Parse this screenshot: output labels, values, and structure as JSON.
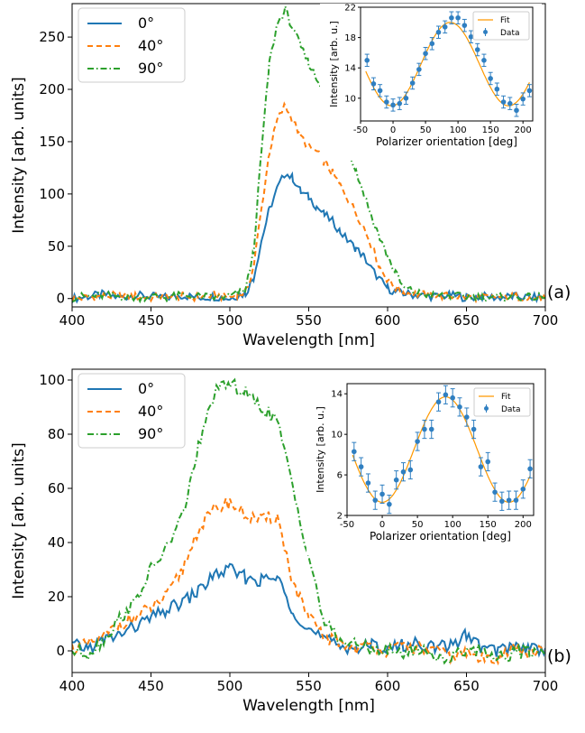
{
  "chart_data": [
    {
      "type": "line",
      "panel_label": "(a)",
      "xlabel": "Wavelength [nm]",
      "ylabel": "Intensity [arb. units]",
      "xlim": [
        400,
        700
      ],
      "ylim": [
        -8,
        282
      ],
      "x_ticks": [
        400,
        450,
        500,
        550,
        600,
        650,
        700
      ],
      "y_ticks": [
        0,
        50,
        100,
        150,
        200,
        250
      ],
      "legend_position": "upper-left",
      "grid": false,
      "x": [
        400,
        410,
        420,
        430,
        440,
        450,
        460,
        470,
        480,
        490,
        500,
        505,
        510,
        515,
        520,
        525,
        530,
        535,
        540,
        545,
        550,
        555,
        560,
        565,
        570,
        575,
        580,
        585,
        590,
        595,
        600,
        605,
        610,
        620,
        630,
        640,
        650,
        660,
        670,
        680,
        690,
        700
      ],
      "series": [
        {
          "name": "0°",
          "color": "#1f77b4",
          "dash": "solid",
          "values": [
            0,
            2,
            4,
            1,
            3,
            2,
            1,
            3,
            1,
            2,
            0,
            3,
            5,
            20,
            55,
            85,
            105,
            120,
            115,
            102,
            97,
            88,
            80,
            74,
            64,
            55,
            48,
            40,
            28,
            18,
            10,
            6,
            5,
            3,
            2,
            3,
            1,
            2,
            1,
            2,
            1,
            1
          ]
        },
        {
          "name": "40°",
          "color": "#ff7f0e",
          "dash": "dashed",
          "values": [
            0,
            1,
            2,
            3,
            2,
            1,
            2,
            2,
            1,
            3,
            1,
            4,
            6,
            30,
            85,
            140,
            170,
            185,
            170,
            155,
            145,
            140,
            130,
            120,
            108,
            95,
            82,
            68,
            50,
            30,
            18,
            10,
            6,
            4,
            3,
            2,
            2,
            1,
            1,
            2,
            1,
            0
          ]
        },
        {
          "name": "90°",
          "color": "#2ca02c",
          "dash": "dashdot",
          "values": [
            1,
            2,
            3,
            2,
            1,
            2,
            1,
            3,
            2,
            1,
            2,
            5,
            8,
            45,
            140,
            225,
            262,
            276,
            258,
            240,
            225,
            210,
            198,
            188,
            165,
            145,
            122,
            100,
            78,
            58,
            40,
            25,
            10,
            5,
            3,
            2,
            2,
            1,
            1,
            2,
            1,
            1
          ]
        }
      ],
      "inset": {
        "xlabel": "Polarizer orientation [deg]",
        "ylabel": "Intensity [arb. u.]",
        "xlim": [
          -50,
          215
        ],
        "ylim": [
          7,
          22
        ],
        "x_ticks": [
          -50,
          0,
          50,
          100,
          150,
          200
        ],
        "y_ticks": [
          10,
          14,
          18,
          22
        ],
        "fit_label": "Fit",
        "data_label": "Data",
        "fit_color": "#ff9900",
        "data_color": "#2f7fc1",
        "fit": {
          "mean": 14.5,
          "amplitude": 5.5,
          "peak_deg": 88
        },
        "data": {
          "x": [
            -40,
            -30,
            -20,
            -10,
            0,
            10,
            20,
            30,
            40,
            50,
            60,
            70,
            80,
            90,
            100,
            110,
            120,
            130,
            140,
            150,
            160,
            170,
            180,
            190,
            200,
            210
          ],
          "y": [
            15.0,
            11.9,
            11.0,
            9.5,
            9.1,
            9.3,
            10.0,
            12.0,
            13.8,
            15.9,
            17.2,
            18.7,
            19.4,
            20.6,
            20.6,
            19.6,
            18.1,
            16.4,
            15.0,
            12.6,
            11.2,
            9.5,
            9.3,
            8.4,
            9.9,
            11.0
          ],
          "err": [
            0.8,
            0.8,
            0.8,
            0.8,
            0.8,
            0.8,
            0.8,
            0.8,
            0.8,
            0.8,
            0.8,
            0.8,
            0.8,
            0.8,
            0.8,
            0.8,
            0.8,
            0.8,
            0.8,
            0.8,
            0.8,
            0.8,
            0.8,
            0.8,
            0.8,
            0.8
          ]
        }
      }
    },
    {
      "type": "line",
      "panel_label": "(b)",
      "xlabel": "Wavelength [nm]",
      "ylabel": "Intensity [arb. units]",
      "xlim": [
        400,
        700
      ],
      "ylim": [
        -8,
        104
      ],
      "x_ticks": [
        400,
        450,
        500,
        550,
        600,
        650,
        700
      ],
      "y_ticks": [
        0,
        20,
        40,
        60,
        80,
        100
      ],
      "legend_position": "upper-left",
      "grid": false,
      "x": [
        400,
        410,
        420,
        430,
        440,
        450,
        460,
        470,
        480,
        490,
        500,
        510,
        520,
        530,
        540,
        550,
        560,
        570,
        580,
        590,
        600,
        610,
        620,
        630,
        640,
        650,
        660,
        670,
        680,
        690,
        700
      ],
      "series": [
        {
          "name": "0°",
          "color": "#1f77b4",
          "dash": "solid",
          "values": [
            2,
            1,
            4,
            6,
            9,
            12,
            15,
            18,
            22,
            28,
            30,
            27,
            26,
            27,
            15,
            8,
            4,
            2,
            1,
            2,
            1,
            2,
            3,
            1,
            2,
            6,
            1,
            0,
            2,
            1,
            1
          ]
        },
        {
          "name": "40°",
          "color": "#ff7f0e",
          "dash": "dashed",
          "values": [
            1,
            2,
            5,
            10,
            12,
            16,
            20,
            30,
            45,
            52,
            55,
            50,
            48,
            50,
            25,
            12,
            5,
            3,
            1,
            2,
            0,
            2,
            1,
            0,
            -2,
            -1,
            -3,
            -2,
            1,
            -1,
            0
          ]
        },
        {
          "name": "90°",
          "color": "#2ca02c",
          "dash": "dashdot",
          "values": [
            0,
            -1,
            4,
            12,
            18,
            30,
            38,
            50,
            75,
            95,
            99,
            95,
            90,
            85,
            60,
            35,
            10,
            4,
            2,
            1,
            0,
            -1,
            1,
            -2,
            -3,
            1,
            0,
            -2,
            -1,
            0,
            -1
          ]
        }
      ],
      "inset": {
        "xlabel": "Polarizer orientation [deg]",
        "ylabel": "Intensity [arb. u.]",
        "xlim": [
          -50,
          215
        ],
        "ylim": [
          2,
          15
        ],
        "x_ticks": [
          -50,
          0,
          50,
          100,
          150,
          200
        ],
        "y_ticks": [
          2,
          6,
          10,
          14
        ],
        "fit_label": "Fit",
        "data_label": "Data",
        "fit_color": "#ff9900",
        "data_color": "#2f7fc1",
        "fit": {
          "mean": 8.5,
          "amplitude": 5.2,
          "peak_deg": 90
        },
        "data": {
          "x": [
            -40,
            -30,
            -20,
            -10,
            0,
            10,
            20,
            30,
            40,
            50,
            60,
            70,
            80,
            90,
            100,
            110,
            120,
            130,
            140,
            150,
            160,
            170,
            180,
            190,
            200,
            210
          ],
          "y": [
            8.3,
            6.8,
            5.2,
            3.5,
            4.1,
            3.1,
            5.5,
            6.3,
            6.5,
            9.3,
            10.5,
            10.5,
            13.2,
            13.9,
            13.6,
            12.7,
            11.7,
            10.5,
            6.8,
            7.3,
            4.3,
            3.4,
            3.5,
            3.5,
            4.6,
            6.6
          ],
          "err": [
            0.9,
            0.9,
            0.9,
            0.9,
            0.9,
            0.9,
            0.9,
            0.9,
            0.9,
            0.9,
            0.9,
            0.9,
            0.9,
            0.9,
            0.9,
            0.9,
            0.9,
            0.9,
            0.9,
            0.9,
            0.9,
            0.9,
            0.9,
            0.9,
            0.9,
            0.9
          ]
        }
      }
    }
  ]
}
